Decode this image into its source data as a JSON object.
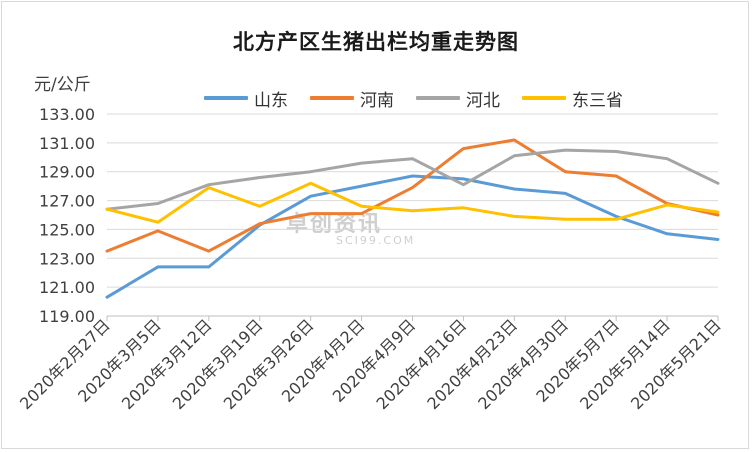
{
  "chart_data": {
    "type": "line",
    "title": "北方产区生猪出栏均重走势图",
    "ylabel": "元/公斤",
    "xlabel": "",
    "ylim": [
      119,
      133
    ],
    "yticks": [
      "119.00",
      "121.00",
      "123.00",
      "125.00",
      "127.00",
      "129.00",
      "131.00",
      "133.00"
    ],
    "categories": [
      "2020年2月27日",
      "2020年3月5日",
      "2020年3月12日",
      "2020年3月19日",
      "2020年3月26日",
      "2020年4月2日",
      "2020年4月9日",
      "2020年4月16日",
      "2020年4月23日",
      "2020年4月30日",
      "2020年5月7日",
      "2020年5月14日",
      "2020年5月21日"
    ],
    "series": [
      {
        "name": "山东",
        "color": "#5b9bd5",
        "values": [
          120.3,
          122.4,
          122.4,
          125.3,
          127.3,
          128.0,
          128.7,
          128.5,
          127.8,
          127.5,
          125.9,
          124.7,
          124.3
        ]
      },
      {
        "name": "河南",
        "color": "#ed7d31",
        "values": [
          123.5,
          124.9,
          123.5,
          125.4,
          126.1,
          126.1,
          127.9,
          130.6,
          131.2,
          129.0,
          128.7,
          126.8,
          126.0
        ]
      },
      {
        "name": "河北",
        "color": "#a5a5a5",
        "values": [
          126.4,
          126.8,
          128.1,
          128.6,
          129.0,
          129.6,
          129.9,
          128.1,
          130.1,
          130.5,
          130.4,
          129.9,
          128.2
        ]
      },
      {
        "name": "东三省",
        "color": "#ffc000",
        "values": [
          126.4,
          125.5,
          127.9,
          126.6,
          128.2,
          126.6,
          126.3,
          126.5,
          125.9,
          125.7,
          125.7,
          126.7,
          126.2
        ]
      }
    ],
    "legend_position": "top",
    "grid": true,
    "watermark": "卓创资讯",
    "watermark_sub": "SCI99.COM"
  }
}
